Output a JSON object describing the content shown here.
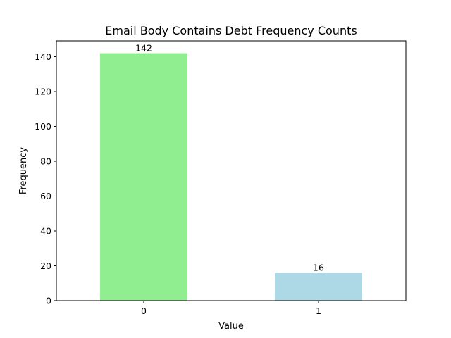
{
  "chart_data": {
    "type": "bar",
    "title": "Email Body Contains Debt Frequency Counts",
    "xlabel": "Value",
    "ylabel": "Frequency",
    "categories": [
      "0",
      "1"
    ],
    "values": [
      142,
      16
    ],
    "colors": [
      "#90ee90",
      "#add8e6"
    ],
    "ylim": [
      0,
      149.1
    ],
    "yticks": [
      0,
      20,
      40,
      60,
      80,
      100,
      120,
      140
    ],
    "grid": false,
    "data_labels": true
  }
}
